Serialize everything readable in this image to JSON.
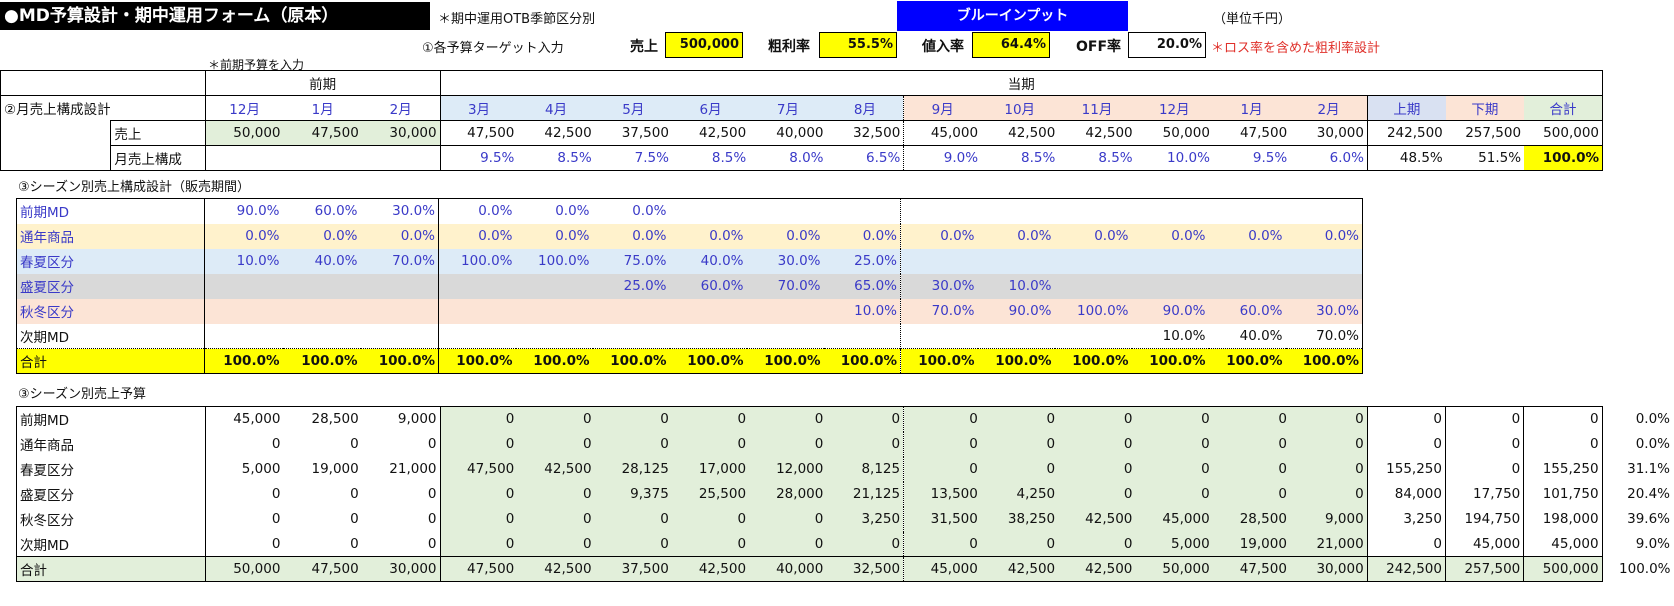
{
  "header": {
    "title": "●MD予算設計・期中運用フォーム（原本）",
    "note_season": "＊期中運用OTB季節区分別",
    "blue_input": "ブルーインプット",
    "unit": "（単位千円）",
    "step1": "①各予算ターゲット入力",
    "sales_label": "売上",
    "sales_value": "500,000",
    "gross_label": "粗利率",
    "gross_value": "55.5%",
    "markup_label": "値入率",
    "markup_value": "64.4%",
    "off_label": "OFF率",
    "off_value": "20.0%",
    "loss_note": "＊ロス率を含めた粗利率設計",
    "prev_note": "＊前期予算を入力",
    "prev_period": "前期",
    "curr_period": "当期"
  },
  "months": {
    "section_label": "②月売上構成設計",
    "headers": [
      "12月",
      "1月",
      "2月",
      "3月",
      "4月",
      "5月",
      "6月",
      "7月",
      "8月",
      "9月",
      "10月",
      "11月",
      "12月",
      "1月",
      "2月",
      "上期",
      "下期",
      "合計"
    ],
    "sales_label": "売上",
    "sales": [
      "50,000",
      "47,500",
      "30,000",
      "47,500",
      "42,500",
      "37,500",
      "42,500",
      "40,000",
      "32,500",
      "45,000",
      "42,500",
      "42,500",
      "50,000",
      "47,500",
      "30,000",
      "242,500",
      "257,500",
      "500,000"
    ],
    "ratio_label": "月売上構成",
    "ratio": [
      "",
      "",
      "",
      "9.5%",
      "8.5%",
      "7.5%",
      "8.5%",
      "8.0%",
      "6.5%",
      "9.0%",
      "8.5%",
      "8.5%",
      "10.0%",
      "9.5%",
      "6.0%",
      "48.5%",
      "51.5%",
      "100.0%"
    ]
  },
  "season_mix": {
    "section_label": "③シーズン別売上構成設計（販売期間）",
    "rows": [
      {
        "label": "前期MD",
        "values": [
          "90.0%",
          "60.0%",
          "30.0%",
          "0.0%",
          "0.0%",
          "0.0%",
          "",
          "",
          "",
          "",
          "",
          "",
          "",
          "",
          ""
        ]
      },
      {
        "label": "通年商品",
        "values": [
          "0.0%",
          "0.0%",
          "0.0%",
          "0.0%",
          "0.0%",
          "0.0%",
          "0.0%",
          "0.0%",
          "0.0%",
          "0.0%",
          "0.0%",
          "0.0%",
          "0.0%",
          "0.0%",
          "0.0%"
        ]
      },
      {
        "label": "春夏区分",
        "values": [
          "10.0%",
          "40.0%",
          "70.0%",
          "100.0%",
          "100.0%",
          "75.0%",
          "40.0%",
          "30.0%",
          "25.0%",
          "",
          "",
          "",
          "",
          "",
          ""
        ]
      },
      {
        "label": "盛夏区分",
        "values": [
          "",
          "",
          "",
          "",
          "",
          "25.0%",
          "60.0%",
          "70.0%",
          "65.0%",
          "30.0%",
          "10.0%",
          "",
          "",
          "",
          ""
        ]
      },
      {
        "label": "秋冬区分",
        "values": [
          "",
          "",
          "",
          "",
          "",
          "",
          "",
          "",
          "10.0%",
          "70.0%",
          "90.0%",
          "100.0%",
          "90.0%",
          "60.0%",
          "30.0%"
        ]
      },
      {
        "label": "次期MD",
        "values": [
          "",
          "",
          "",
          "",
          "",
          "",
          "",
          "",
          "",
          "",
          "",
          "",
          "10.0%",
          "40.0%",
          "70.0%"
        ]
      }
    ],
    "total_label": "合計",
    "totals": [
      "100.0%",
      "100.0%",
      "100.0%",
      "100.0%",
      "100.0%",
      "100.0%",
      "100.0%",
      "100.0%",
      "100.0%",
      "100.0%",
      "100.0%",
      "100.0%",
      "100.0%",
      "100.0%",
      "100.0%"
    ]
  },
  "season_budget": {
    "section_label": "③シーズン別売上予算",
    "rows": [
      {
        "label": "前期MD",
        "values": [
          "45,000",
          "28,500",
          "9,000",
          "0",
          "0",
          "0",
          "0",
          "0",
          "0",
          "0",
          "0",
          "0",
          "0",
          "0",
          "0",
          "0",
          "0",
          "0",
          "0.0%"
        ]
      },
      {
        "label": "通年商品",
        "values": [
          "0",
          "0",
          "0",
          "0",
          "0",
          "0",
          "0",
          "0",
          "0",
          "0",
          "0",
          "0",
          "0",
          "0",
          "0",
          "0",
          "0",
          "0",
          "0.0%"
        ]
      },
      {
        "label": "春夏区分",
        "values": [
          "5,000",
          "19,000",
          "21,000",
          "47,500",
          "42,500",
          "28,125",
          "17,000",
          "12,000",
          "8,125",
          "0",
          "0",
          "0",
          "0",
          "0",
          "0",
          "155,250",
          "0",
          "155,250",
          "31.1%"
        ]
      },
      {
        "label": "盛夏区分",
        "values": [
          "0",
          "0",
          "0",
          "0",
          "0",
          "9,375",
          "25,500",
          "28,000",
          "21,125",
          "13,500",
          "4,250",
          "0",
          "0",
          "0",
          "0",
          "84,000",
          "17,750",
          "101,750",
          "20.4%"
        ]
      },
      {
        "label": "秋冬区分",
        "values": [
          "0",
          "0",
          "0",
          "0",
          "0",
          "0",
          "0",
          "0",
          "3,250",
          "31,500",
          "38,250",
          "42,500",
          "45,000",
          "28,500",
          "9,000",
          "3,250",
          "194,750",
          "198,000",
          "39.6%"
        ]
      },
      {
        "label": "次期MD",
        "values": [
          "0",
          "0",
          "0",
          "0",
          "0",
          "0",
          "0",
          "0",
          "0",
          "0",
          "0",
          "0",
          "5,000",
          "19,000",
          "21,000",
          "0",
          "45,000",
          "45,000",
          "9.0%"
        ]
      }
    ],
    "total_label": "合計",
    "totals": [
      "50,000",
      "47,500",
      "30,000",
      "47,500",
      "42,500",
      "37,500",
      "42,500",
      "40,000",
      "32,500",
      "45,000",
      "42,500",
      "42,500",
      "50,000",
      "47,500",
      "30,000",
      "242,500",
      "257,500",
      "500,000",
      "100.0%"
    ]
  }
}
